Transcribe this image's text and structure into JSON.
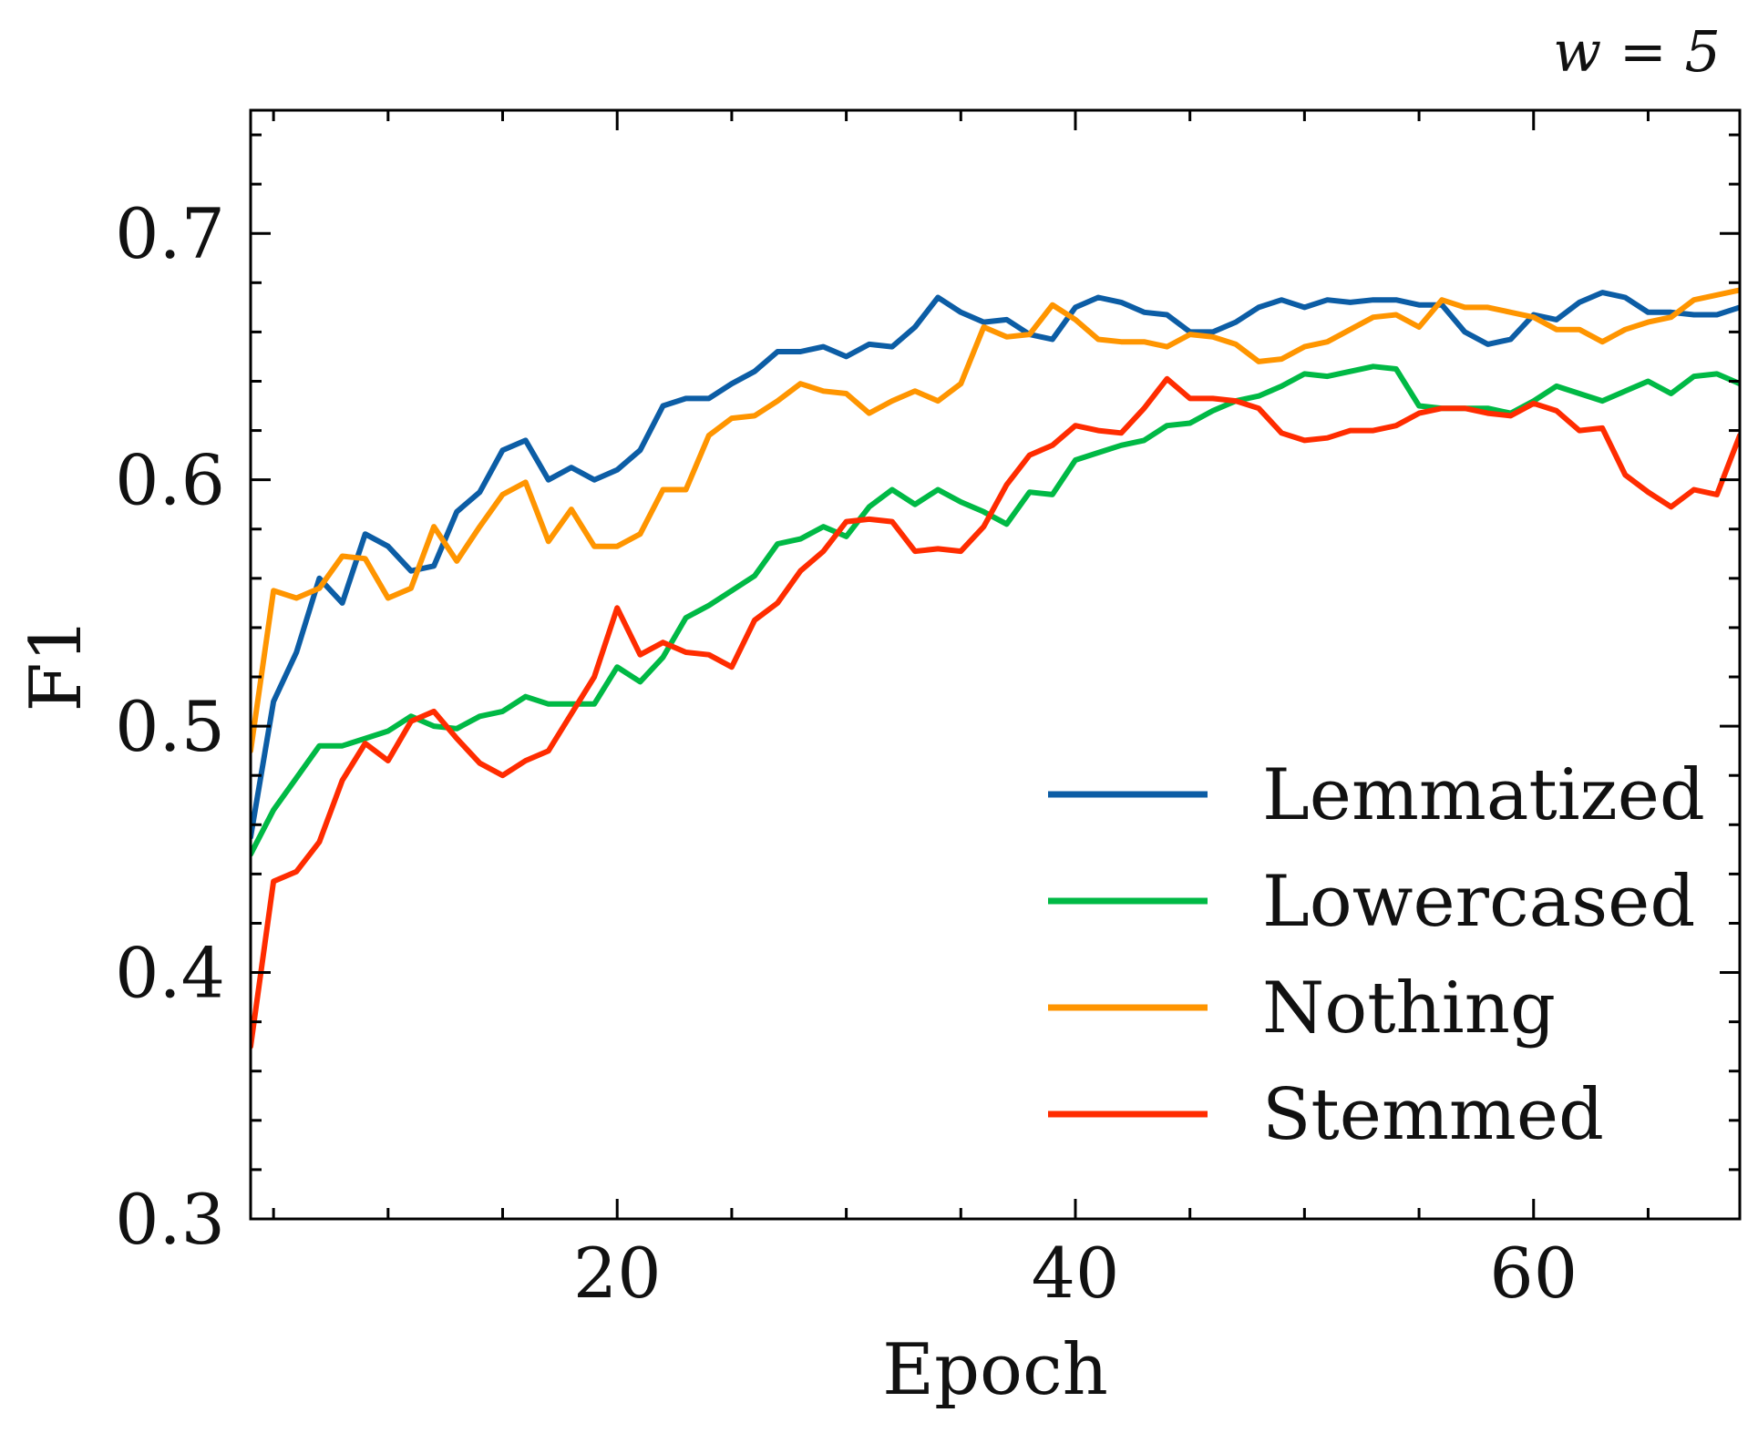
{
  "chart_data": {
    "type": "line",
    "annotation": "w = 5",
    "xlabel": "Epoch",
    "ylabel": "F1",
    "xlim": [
      4,
      69
    ],
    "ylim": [
      0.3,
      0.75
    ],
    "x_ticks": [
      20,
      40,
      60
    ],
    "y_ticks": [
      0.3,
      0.4,
      0.5,
      0.6,
      0.7
    ],
    "x_tick_labels": [
      "20",
      "40",
      "60"
    ],
    "y_tick_labels": [
      "0.3",
      "0.4",
      "0.5",
      "0.6",
      "0.7"
    ],
    "grid": false,
    "legend_position": "bottom-right",
    "x": [
      4,
      5,
      6,
      7,
      8,
      9,
      10,
      11,
      12,
      13,
      14,
      15,
      16,
      17,
      18,
      19,
      20,
      21,
      22,
      23,
      24,
      25,
      26,
      27,
      28,
      29,
      30,
      31,
      32,
      33,
      34,
      35,
      36,
      37,
      38,
      39,
      40,
      41,
      42,
      43,
      44,
      45,
      46,
      47,
      48,
      49,
      50,
      51,
      52,
      53,
      54,
      55,
      56,
      57,
      58,
      59,
      60,
      61,
      62,
      63,
      64,
      65,
      66,
      67,
      68,
      69
    ],
    "series": [
      {
        "name": "Lemmatized",
        "color": "#0C5DA5",
        "values": [
          0.455,
          0.51,
          0.53,
          0.56,
          0.55,
          0.578,
          0.573,
          0.563,
          0.565,
          0.587,
          0.595,
          0.612,
          0.616,
          0.6,
          0.605,
          0.6,
          0.604,
          0.612,
          0.63,
          0.633,
          0.633,
          0.639,
          0.644,
          0.652,
          0.652,
          0.654,
          0.65,
          0.655,
          0.654,
          0.662,
          0.674,
          0.668,
          0.664,
          0.665,
          0.659,
          0.657,
          0.67,
          0.674,
          0.672,
          0.668,
          0.667,
          0.66,
          0.66,
          0.664,
          0.67,
          0.673,
          0.67,
          0.673,
          0.672,
          0.673,
          0.673,
          0.671,
          0.671,
          0.66,
          0.655,
          0.657,
          0.667,
          0.665,
          0.672,
          0.676,
          0.674,
          0.668,
          0.668,
          0.667,
          0.667,
          0.67
        ]
      },
      {
        "name": "Lowercased",
        "color": "#00B945",
        "values": [
          0.448,
          0.466,
          0.479,
          0.492,
          0.492,
          0.495,
          0.498,
          0.504,
          0.5,
          0.499,
          0.504,
          0.506,
          0.512,
          0.509,
          0.509,
          0.509,
          0.524,
          0.518,
          0.528,
          0.544,
          0.549,
          0.555,
          0.561,
          0.574,
          0.576,
          0.581,
          0.577,
          0.589,
          0.596,
          0.59,
          0.596,
          0.591,
          0.587,
          0.582,
          0.595,
          0.594,
          0.608,
          0.611,
          0.614,
          0.616,
          0.622,
          0.623,
          0.628,
          0.632,
          0.634,
          0.638,
          0.643,
          0.642,
          0.644,
          0.646,
          0.645,
          0.63,
          0.629,
          0.629,
          0.629,
          0.627,
          0.632,
          0.638,
          0.635,
          0.632,
          0.636,
          0.64,
          0.635,
          0.642,
          0.643,
          0.639
        ]
      },
      {
        "name": "Nothing",
        "color": "#FF9500",
        "values": [
          0.49,
          0.555,
          0.552,
          0.556,
          0.569,
          0.568,
          0.552,
          0.556,
          0.581,
          0.567,
          0.581,
          0.594,
          0.599,
          0.575,
          0.588,
          0.573,
          0.573,
          0.578,
          0.596,
          0.596,
          0.618,
          0.625,
          0.626,
          0.632,
          0.639,
          0.636,
          0.635,
          0.627,
          0.632,
          0.636,
          0.632,
          0.639,
          0.662,
          0.658,
          0.659,
          0.671,
          0.665,
          0.657,
          0.656,
          0.656,
          0.654,
          0.659,
          0.658,
          0.655,
          0.648,
          0.649,
          0.654,
          0.656,
          0.661,
          0.666,
          0.667,
          0.662,
          0.673,
          0.67,
          0.67,
          0.668,
          0.666,
          0.661,
          0.661,
          0.656,
          0.661,
          0.664,
          0.666,
          0.673,
          0.675,
          0.677
        ]
      },
      {
        "name": "Stemmed",
        "color": "#FF2C00",
        "values": [
          0.37,
          0.437,
          0.441,
          0.453,
          0.478,
          0.493,
          0.486,
          0.502,
          0.506,
          0.495,
          0.485,
          0.48,
          0.486,
          0.49,
          0.505,
          0.52,
          0.548,
          0.529,
          0.534,
          0.53,
          0.529,
          0.524,
          0.543,
          0.55,
          0.563,
          0.571,
          0.583,
          0.584,
          0.583,
          0.571,
          0.572,
          0.571,
          0.581,
          0.598,
          0.61,
          0.614,
          0.622,
          0.62,
          0.619,
          0.629,
          0.641,
          0.633,
          0.633,
          0.632,
          0.629,
          0.619,
          0.616,
          0.617,
          0.62,
          0.62,
          0.622,
          0.627,
          0.629,
          0.629,
          0.627,
          0.626,
          0.631,
          0.628,
          0.62,
          0.621,
          0.602,
          0.595,
          0.589,
          0.596,
          0.594,
          0.618
        ]
      }
    ]
  }
}
